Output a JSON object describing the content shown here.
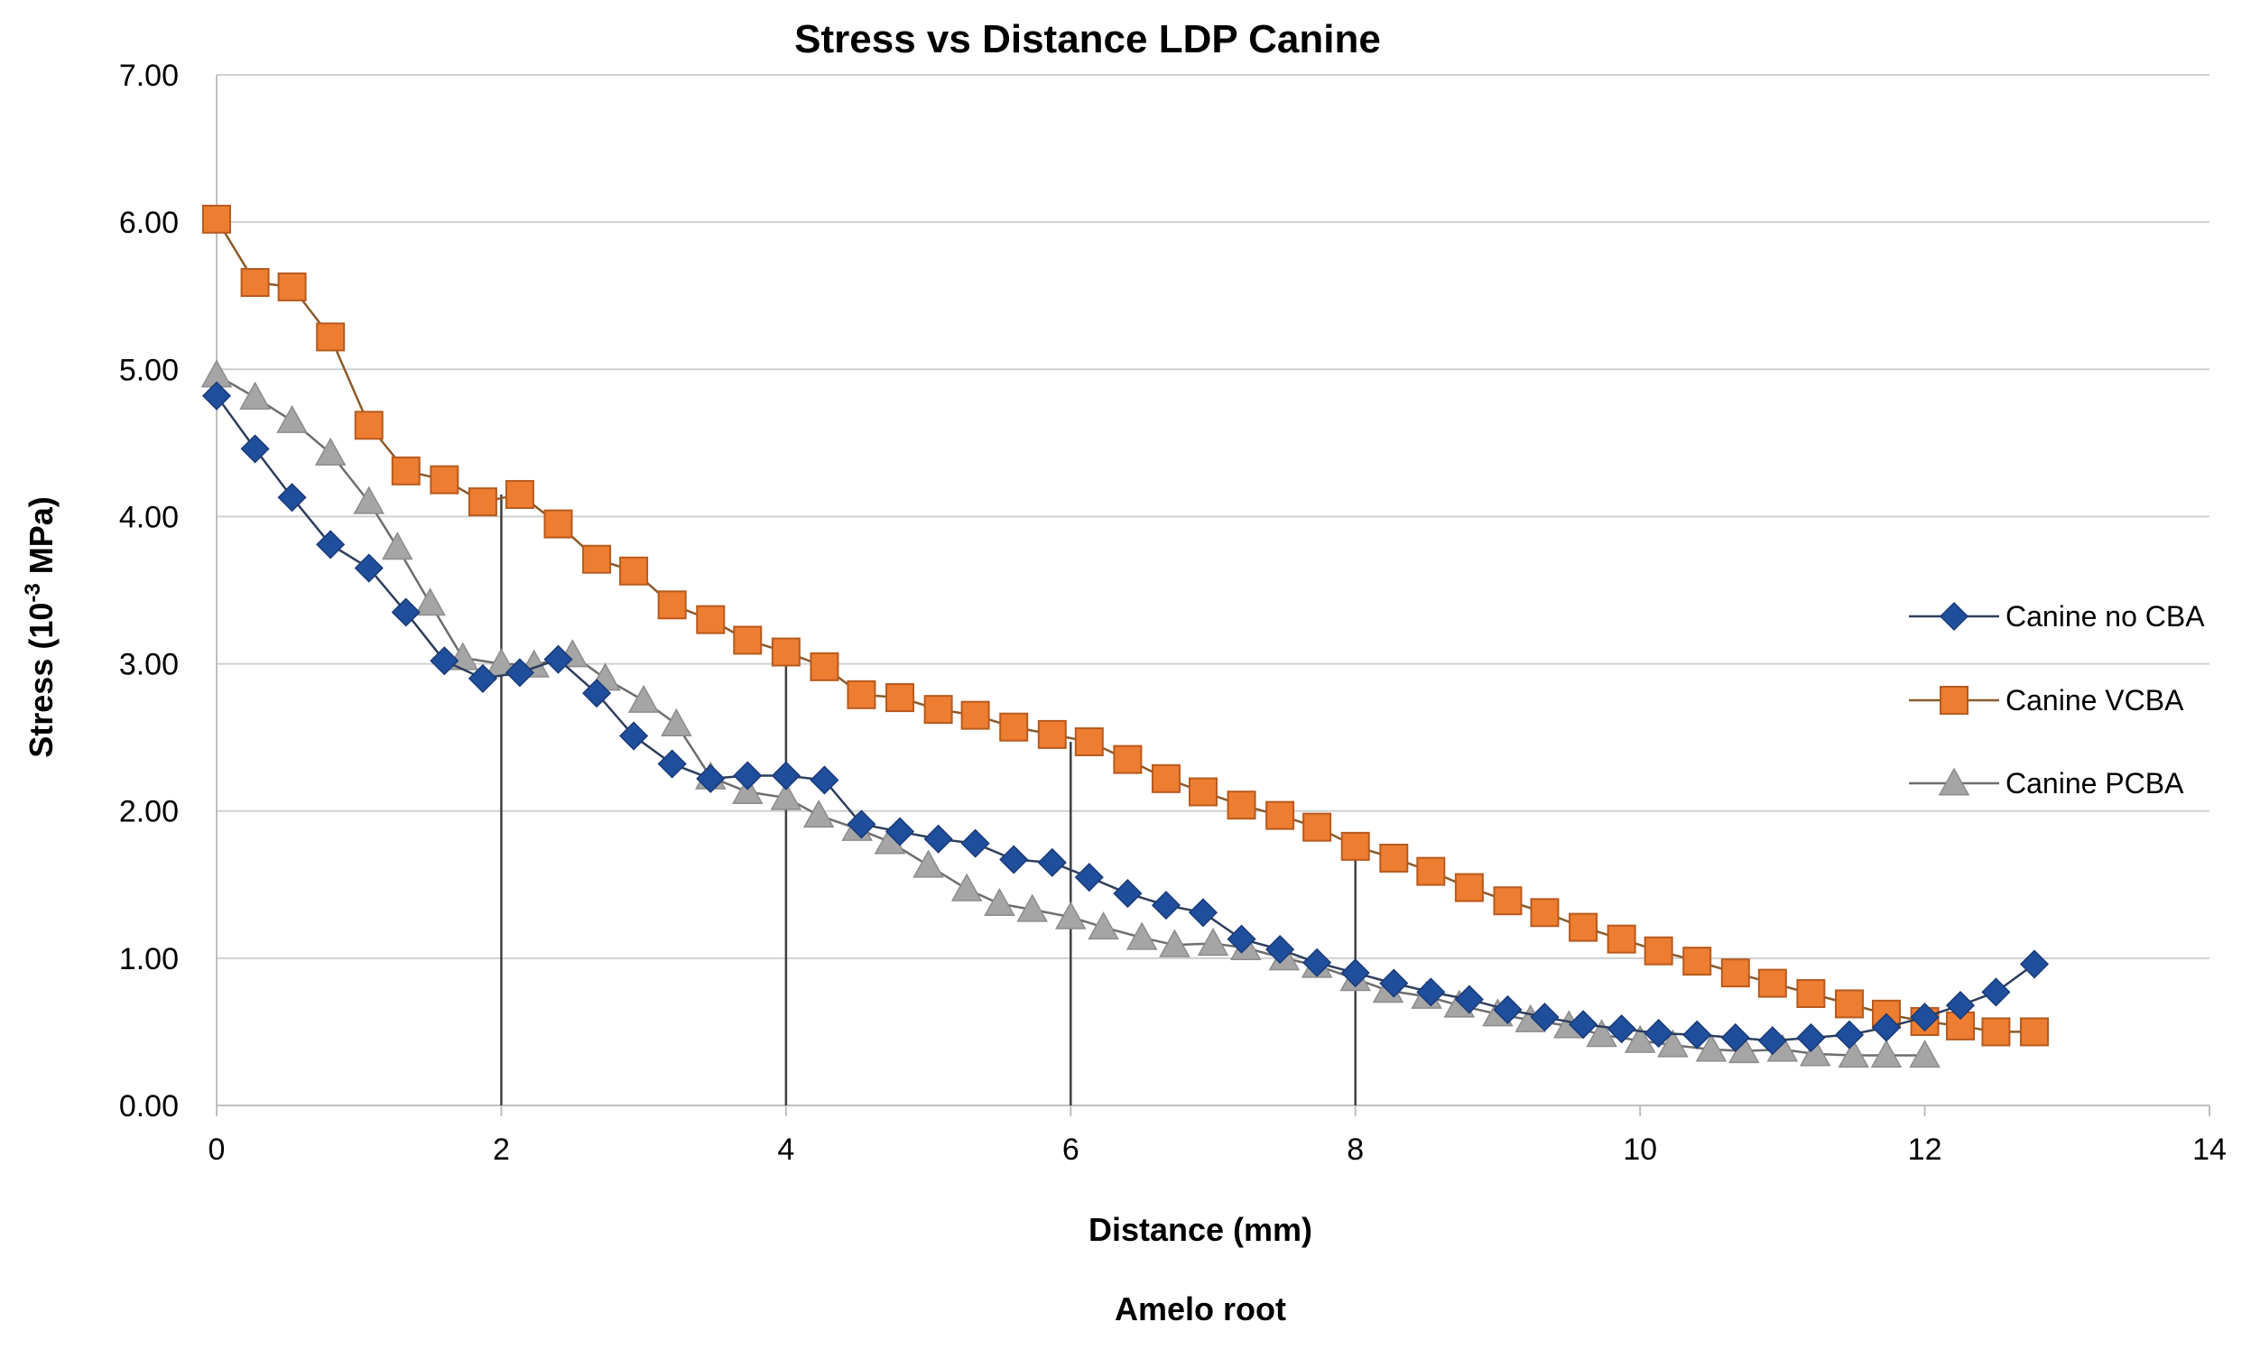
{
  "chart_data": {
    "type": "scatter",
    "title": "Stress vs Distance  LDP Canine",
    "xlabel": "Distance (mm)",
    "ylabel": {
      "prefix": "Stress (10",
      "sup": "-3",
      "suffix": " MPa)"
    },
    "caption": "Amelo root",
    "xlim": [
      0,
      14
    ],
    "ylim": [
      0,
      7
    ],
    "x_ticks": [
      "0",
      "2",
      "4",
      "6",
      "8",
      "10",
      "12",
      "14"
    ],
    "y_ticks": [
      "0.00",
      "1.00",
      "2.00",
      "3.00",
      "4.00",
      "5.00",
      "6.00",
      "7.00"
    ],
    "grid": "horizontal",
    "legend_position": "right",
    "vertical_markers": [
      {
        "x": 2,
        "y": 4.15
      },
      {
        "x": 4,
        "y": 3.08
      },
      {
        "x": 6,
        "y": 2.47
      },
      {
        "x": 8,
        "y": 1.76
      }
    ],
    "series": [
      {
        "name": "Canine no CBA",
        "marker": "diamond",
        "color": "#1F4E9C",
        "line_color": "#2F3E5C",
        "x": [
          0,
          0.27,
          0.53,
          0.8,
          1.07,
          1.33,
          1.6,
          1.87,
          2.13,
          2.4,
          2.67,
          2.93,
          3.2,
          3.47,
          3.73,
          4.0,
          4.27,
          4.53,
          4.8,
          5.07,
          5.33,
          5.6,
          5.87,
          6.13,
          6.4,
          6.67,
          6.93,
          7.2,
          7.47,
          7.73,
          8.0,
          8.27,
          8.53,
          8.8,
          9.07,
          9.33,
          9.6,
          9.87,
          10.13,
          10.4,
          10.67,
          10.93,
          11.2,
          11.47,
          11.73,
          12.0,
          12.25,
          12.5,
          12.77
        ],
        "y": [
          4.82,
          4.46,
          4.13,
          3.81,
          3.65,
          3.35,
          3.02,
          2.9,
          2.94,
          3.03,
          2.8,
          2.51,
          2.32,
          2.22,
          2.24,
          2.24,
          2.21,
          1.91,
          1.86,
          1.81,
          1.78,
          1.67,
          1.65,
          1.55,
          1.44,
          1.36,
          1.31,
          1.13,
          1.06,
          0.97,
          0.9,
          0.83,
          0.77,
          0.72,
          0.65,
          0.6,
          0.55,
          0.52,
          0.49,
          0.48,
          0.46,
          0.44,
          0.46,
          0.48,
          0.53,
          0.6,
          0.68,
          0.77,
          0.96
        ]
      },
      {
        "name": "Canine VCBA",
        "marker": "square",
        "color": "#ED7D31",
        "line_color": "#8B5A2B",
        "x": [
          0,
          0.27,
          0.53,
          0.8,
          1.07,
          1.33,
          1.6,
          1.87,
          2.13,
          2.4,
          2.67,
          2.93,
          3.2,
          3.47,
          3.73,
          4.0,
          4.27,
          4.53,
          4.8,
          5.07,
          5.33,
          5.6,
          5.87,
          6.13,
          6.4,
          6.67,
          6.93,
          7.2,
          7.47,
          7.73,
          8.0,
          8.27,
          8.53,
          8.8,
          9.07,
          9.33,
          9.6,
          9.87,
          10.13,
          10.4,
          10.67,
          10.93,
          11.2,
          11.47,
          11.73,
          12.0,
          12.25,
          12.5,
          12.77
        ],
        "y": [
          6.02,
          5.59,
          5.56,
          5.22,
          4.62,
          4.31,
          4.25,
          4.1,
          4.15,
          3.95,
          3.71,
          3.63,
          3.4,
          3.3,
          3.16,
          3.08,
          2.98,
          2.79,
          2.77,
          2.69,
          2.65,
          2.57,
          2.52,
          2.47,
          2.35,
          2.22,
          2.13,
          2.04,
          1.97,
          1.89,
          1.76,
          1.68,
          1.59,
          1.48,
          1.39,
          1.31,
          1.21,
          1.13,
          1.05,
          0.98,
          0.9,
          0.83,
          0.76,
          0.69,
          0.62,
          0.57,
          0.54,
          0.5,
          0.5
        ]
      },
      {
        "name": "Canine PCBA",
        "marker": "triangle",
        "color": "#A5A5A5",
        "line_color": "#6E6E6E",
        "x": [
          0,
          0.27,
          0.53,
          0.8,
          1.07,
          1.27,
          1.5,
          1.73,
          2.0,
          2.23,
          2.5,
          2.73,
          3.0,
          3.23,
          3.47,
          3.73,
          4.0,
          4.23,
          4.5,
          4.73,
          5.0,
          5.27,
          5.5,
          5.73,
          6.0,
          6.23,
          6.5,
          6.73,
          7.0,
          7.23,
          7.5,
          7.73,
          8.0,
          8.23,
          8.5,
          8.73,
          9.0,
          9.23,
          9.5,
          9.73,
          10.0,
          10.23,
          10.5,
          10.73,
          11.0,
          11.23,
          11.5,
          11.73,
          12.0
        ],
        "y": [
          4.96,
          4.81,
          4.65,
          4.43,
          4.1,
          3.79,
          3.41,
          3.04,
          3.0,
          2.99,
          3.06,
          2.9,
          2.75,
          2.59,
          2.23,
          2.13,
          2.09,
          1.97,
          1.88,
          1.79,
          1.63,
          1.47,
          1.37,
          1.33,
          1.28,
          1.21,
          1.14,
          1.09,
          1.1,
          1.07,
          1.0,
          0.95,
          0.86,
          0.78,
          0.74,
          0.68,
          0.62,
          0.58,
          0.54,
          0.48,
          0.44,
          0.41,
          0.38,
          0.37,
          0.38,
          0.35,
          0.34,
          0.34,
          0.34
        ]
      }
    ]
  }
}
